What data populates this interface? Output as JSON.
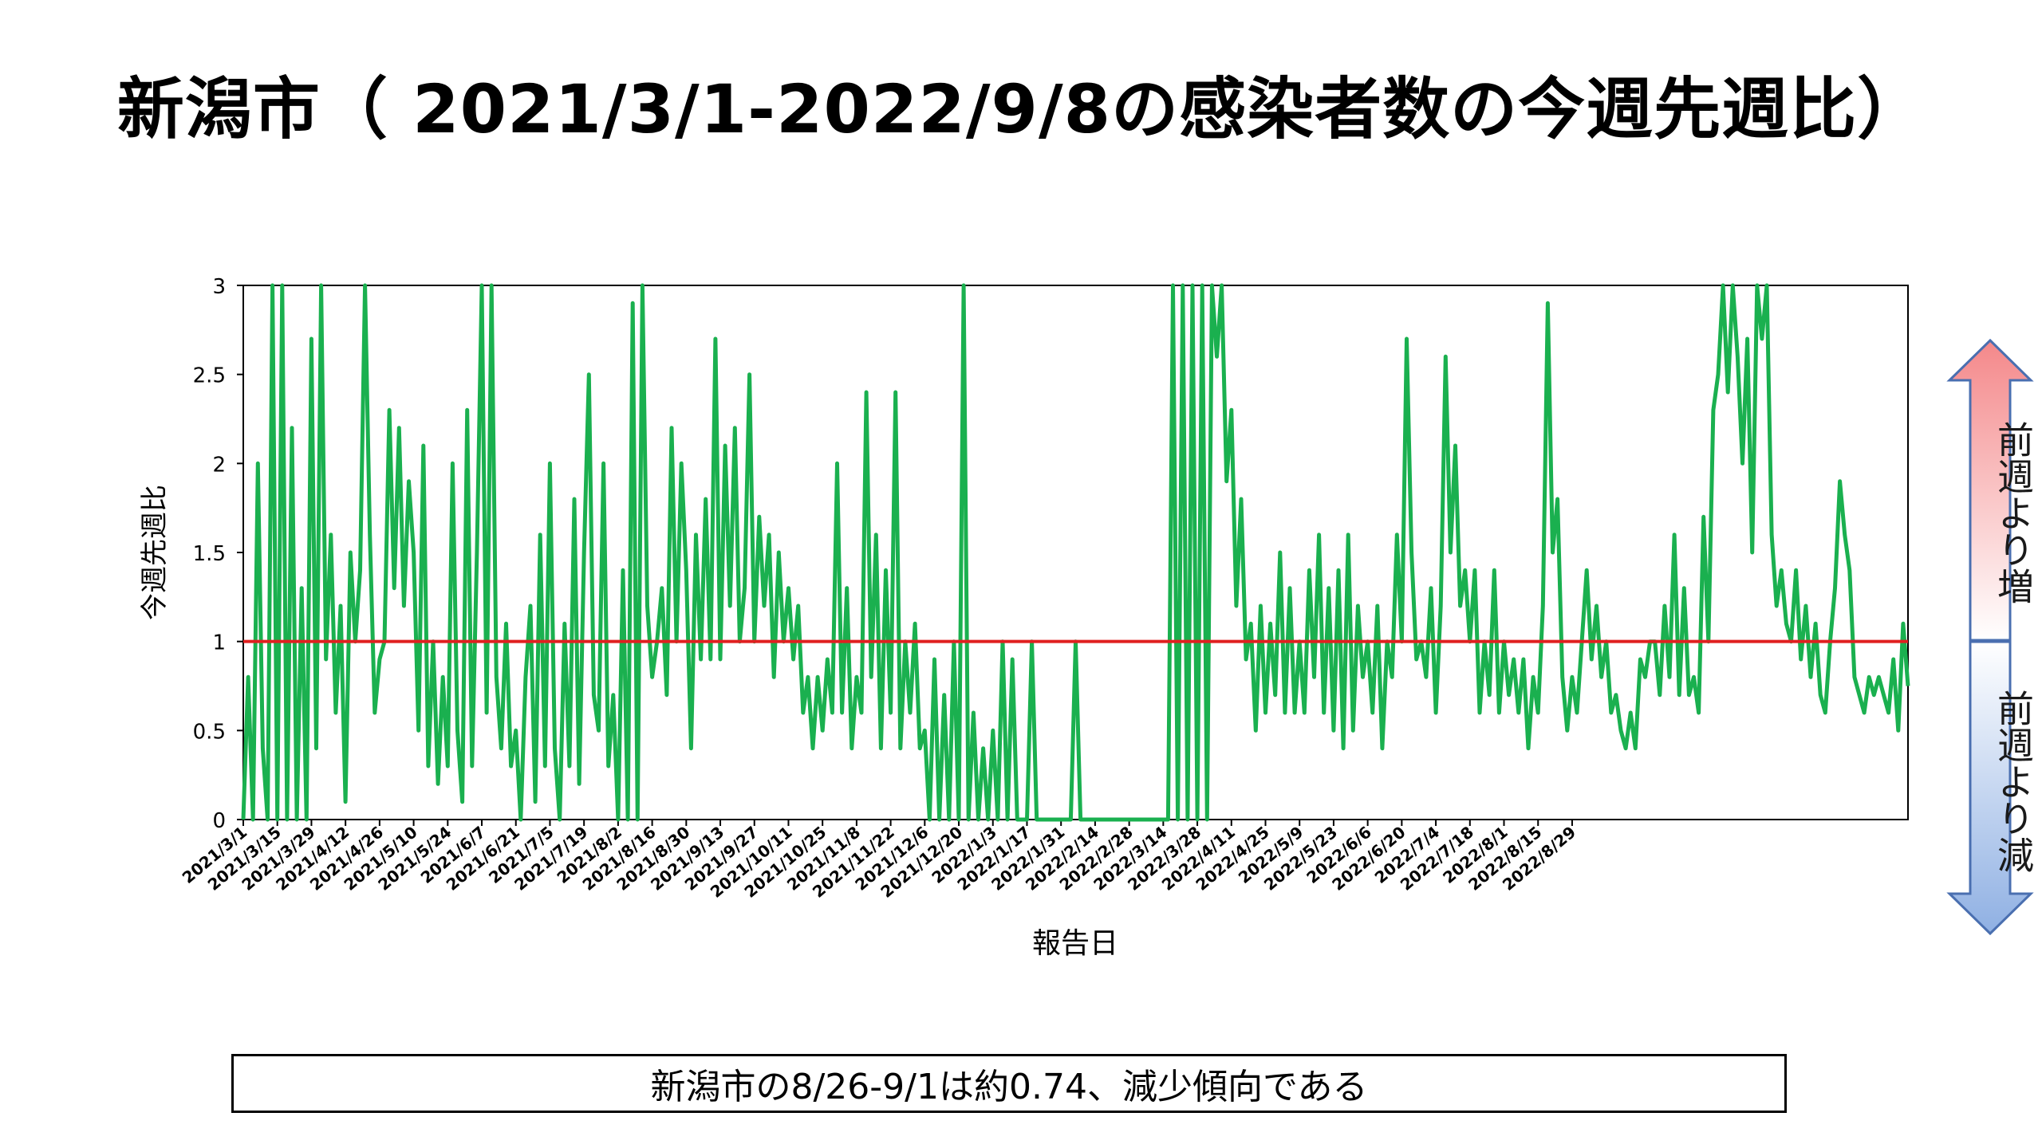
{
  "title": "新潟市（ 2021/3/1-2022/9/8の感染者数の今週先週比）",
  "summary": "新潟市の8/26-9/1は約0.74、減少傾向である",
  "indicator": {
    "up_label": "前週より増",
    "down_label": "前週より減",
    "up_color": "#f4888a",
    "down_color": "#8fb0e3"
  },
  "chart_data": {
    "type": "line",
    "title": "",
    "xlabel": "報告日",
    "ylabel": "今週先週比",
    "ylim": [
      0,
      3
    ],
    "yticks": [
      "0",
      "0.5",
      "1",
      "1.5",
      "2",
      "2.5",
      "3"
    ],
    "xticks": [
      "2021/3/1",
      "2021/3/15",
      "2021/3/29",
      "2021/4/12",
      "2021/4/26",
      "2021/5/10",
      "2021/5/24",
      "2021/6/7",
      "2021/6/21",
      "2021/7/5",
      "2021/7/19",
      "2021/8/2",
      "2021/8/16",
      "2021/8/30",
      "2021/9/13",
      "2021/9/27",
      "2021/10/11",
      "2021/10/25",
      "2021/11/8",
      "2021/11/22",
      "2021/12/6",
      "2021/12/20",
      "2022/1/3",
      "2022/1/17",
      "2022/1/31",
      "2022/2/14",
      "2022/2/28",
      "2022/3/14",
      "2022/3/28",
      "2022/4/11",
      "2022/4/25",
      "2022/5/9",
      "2022/5/23",
      "2022/6/6",
      "2022/6/20",
      "2022/7/4",
      "2022/7/18",
      "2022/8/1",
      "2022/8/15",
      "2022/8/29"
    ],
    "reference_line": {
      "y": 1,
      "color": "#e02020"
    },
    "series": [
      {
        "color": "#1ab04f",
        "points": [
          [
            0,
            0
          ],
          [
            2,
            0.8
          ],
          [
            4,
            0
          ],
          [
            6,
            2
          ],
          [
            8,
            0.4
          ],
          [
            10,
            0
          ],
          [
            12,
            3
          ],
          [
            14,
            0
          ],
          [
            16,
            3
          ],
          [
            18,
            0
          ],
          [
            20,
            2.2
          ],
          [
            22,
            0
          ],
          [
            24,
            1.3
          ],
          [
            26,
            0
          ],
          [
            28,
            2.7
          ],
          [
            30,
            0.4
          ],
          [
            32,
            3
          ],
          [
            34,
            0.9
          ],
          [
            36,
            1.6
          ],
          [
            38,
            0.6
          ],
          [
            40,
            1.2
          ],
          [
            42,
            0.1
          ],
          [
            44,
            1.5
          ],
          [
            46,
            1.0
          ],
          [
            48,
            1.4
          ],
          [
            50,
            3
          ],
          [
            52,
            1.6
          ],
          [
            54,
            0.6
          ],
          [
            56,
            0.9
          ],
          [
            58,
            1.0
          ],
          [
            60,
            2.3
          ],
          [
            62,
            1.3
          ],
          [
            64,
            2.2
          ],
          [
            66,
            1.2
          ],
          [
            68,
            1.9
          ],
          [
            70,
            1.5
          ],
          [
            72,
            0.5
          ],
          [
            74,
            2.1
          ],
          [
            76,
            0.3
          ],
          [
            78,
            1.0
          ],
          [
            80,
            0.2
          ],
          [
            82,
            0.8
          ],
          [
            84,
            0.3
          ],
          [
            86,
            2.0
          ],
          [
            88,
            0.5
          ],
          [
            90,
            0.1
          ],
          [
            92,
            2.3
          ],
          [
            94,
            0.3
          ],
          [
            96,
            1.5
          ],
          [
            98,
            3
          ],
          [
            100,
            0.6
          ],
          [
            102,
            3
          ],
          [
            104,
            0.8
          ],
          [
            106,
            0.4
          ],
          [
            108,
            1.1
          ],
          [
            110,
            0.3
          ],
          [
            112,
            0.5
          ],
          [
            114,
            0
          ],
          [
            116,
            0.8
          ],
          [
            118,
            1.2
          ],
          [
            120,
            0.1
          ],
          [
            122,
            1.6
          ],
          [
            124,
            0.3
          ],
          [
            126,
            2.0
          ],
          [
            128,
            0.4
          ],
          [
            130,
            0
          ],
          [
            132,
            1.1
          ],
          [
            134,
            0.3
          ],
          [
            136,
            1.8
          ],
          [
            138,
            0.2
          ],
          [
            140,
            1.5
          ],
          [
            142,
            2.5
          ],
          [
            144,
            0.7
          ],
          [
            146,
            0.5
          ],
          [
            148,
            2.0
          ],
          [
            150,
            0.3
          ],
          [
            152,
            0.7
          ],
          [
            154,
            0
          ],
          [
            156,
            1.4
          ],
          [
            158,
            0
          ],
          [
            160,
            2.9
          ],
          [
            162,
            0
          ],
          [
            164,
            3
          ],
          [
            166,
            1.2
          ],
          [
            168,
            0.8
          ],
          [
            170,
            1.0
          ],
          [
            172,
            1.3
          ],
          [
            174,
            0.7
          ],
          [
            176,
            2.2
          ],
          [
            178,
            1.0
          ],
          [
            180,
            2.0
          ],
          [
            182,
            1.4
          ],
          [
            184,
            0.4
          ],
          [
            186,
            1.6
          ],
          [
            188,
            0.9
          ],
          [
            190,
            1.8
          ],
          [
            192,
            0.9
          ],
          [
            194,
            2.7
          ],
          [
            196,
            0.9
          ],
          [
            198,
            2.1
          ],
          [
            200,
            1.2
          ],
          [
            202,
            2.2
          ],
          [
            204,
            1.0
          ],
          [
            206,
            1.3
          ],
          [
            208,
            2.5
          ],
          [
            210,
            1.0
          ],
          [
            212,
            1.7
          ],
          [
            214,
            1.2
          ],
          [
            216,
            1.6
          ],
          [
            218,
            0.8
          ],
          [
            220,
            1.5
          ],
          [
            222,
            1.0
          ],
          [
            224,
            1.3
          ],
          [
            226,
            0.9
          ],
          [
            228,
            1.2
          ],
          [
            230,
            0.6
          ],
          [
            232,
            0.8
          ],
          [
            234,
            0.4
          ],
          [
            236,
            0.8
          ],
          [
            238,
            0.5
          ],
          [
            240,
            0.9
          ],
          [
            242,
            0.6
          ],
          [
            244,
            2.0
          ],
          [
            246,
            0.6
          ],
          [
            248,
            1.3
          ],
          [
            250,
            0.4
          ],
          [
            252,
            0.8
          ],
          [
            254,
            0.6
          ],
          [
            256,
            2.4
          ],
          [
            258,
            0.8
          ],
          [
            260,
            1.6
          ],
          [
            262,
            0.4
          ],
          [
            264,
            1.4
          ],
          [
            266,
            0.6
          ],
          [
            268,
            2.4
          ],
          [
            270,
            0.4
          ],
          [
            272,
            1.0
          ],
          [
            274,
            0.6
          ],
          [
            276,
            1.1
          ],
          [
            278,
            0.4
          ],
          [
            280,
            0.5
          ],
          [
            282,
            0
          ],
          [
            284,
            0.9
          ],
          [
            286,
            0
          ],
          [
            288,
            0.7
          ],
          [
            290,
            0
          ],
          [
            292,
            1.0
          ],
          [
            294,
            0
          ],
          [
            296,
            3
          ],
          [
            298,
            0
          ],
          [
            300,
            0.6
          ],
          [
            302,
            0
          ],
          [
            304,
            0.4
          ],
          [
            306,
            0
          ],
          [
            308,
            0.5
          ],
          [
            310,
            0
          ],
          [
            312,
            1.0
          ],
          [
            314,
            0
          ],
          [
            316,
            0.9
          ],
          [
            318,
            0
          ],
          [
            322,
            0
          ],
          [
            324,
            1.0
          ],
          [
            326,
            0
          ],
          [
            340,
            0
          ],
          [
            342,
            1.0
          ],
          [
            344,
            0
          ],
          [
            380,
            0
          ],
          [
            382,
            3
          ],
          [
            384,
            0
          ],
          [
            386,
            3
          ],
          [
            388,
            0
          ],
          [
            390,
            3
          ],
          [
            392,
            0
          ],
          [
            394,
            3
          ],
          [
            396,
            0
          ],
          [
            398,
            3
          ],
          [
            400,
            2.6
          ],
          [
            402,
            3
          ],
          [
            404,
            1.9
          ],
          [
            406,
            2.3
          ],
          [
            408,
            1.2
          ],
          [
            410,
            1.8
          ],
          [
            412,
            0.9
          ],
          [
            414,
            1.1
          ],
          [
            416,
            0.5
          ],
          [
            418,
            1.2
          ],
          [
            420,
            0.6
          ],
          [
            422,
            1.1
          ],
          [
            424,
            0.7
          ],
          [
            426,
            1.5
          ],
          [
            428,
            0.6
          ],
          [
            430,
            1.3
          ],
          [
            432,
            0.6
          ],
          [
            434,
            1.0
          ],
          [
            436,
            0.6
          ],
          [
            438,
            1.4
          ],
          [
            440,
            0.8
          ],
          [
            442,
            1.6
          ],
          [
            444,
            0.6
          ],
          [
            446,
            1.3
          ],
          [
            448,
            0.5
          ],
          [
            450,
            1.4
          ],
          [
            452,
            0.4
          ],
          [
            454,
            1.6
          ],
          [
            456,
            0.5
          ],
          [
            458,
            1.2
          ],
          [
            460,
            0.8
          ],
          [
            462,
            1.0
          ],
          [
            464,
            0.6
          ],
          [
            466,
            1.2
          ],
          [
            468,
            0.4
          ],
          [
            470,
            1.0
          ],
          [
            472,
            0.8
          ],
          [
            474,
            1.6
          ],
          [
            476,
            1.0
          ],
          [
            478,
            2.7
          ],
          [
            480,
            1.5
          ],
          [
            482,
            0.9
          ],
          [
            484,
            1.0
          ],
          [
            486,
            0.8
          ],
          [
            488,
            1.3
          ],
          [
            490,
            0.6
          ],
          [
            492,
            1.2
          ],
          [
            494,
            2.6
          ],
          [
            496,
            1.5
          ],
          [
            498,
            2.1
          ],
          [
            500,
            1.2
          ],
          [
            502,
            1.4
          ],
          [
            504,
            1.0
          ],
          [
            506,
            1.4
          ],
          [
            508,
            0.6
          ],
          [
            510,
            1.0
          ],
          [
            512,
            0.7
          ],
          [
            514,
            1.4
          ],
          [
            516,
            0.6
          ],
          [
            518,
            1.0
          ],
          [
            520,
            0.7
          ],
          [
            522,
            0.9
          ],
          [
            524,
            0.6
          ],
          [
            526,
            0.9
          ],
          [
            528,
            0.4
          ],
          [
            530,
            0.8
          ],
          [
            532,
            0.6
          ],
          [
            534,
            1.2
          ],
          [
            536,
            2.9
          ],
          [
            538,
            1.5
          ],
          [
            540,
            1.8
          ],
          [
            542,
            0.8
          ],
          [
            544,
            0.5
          ],
          [
            546,
            0.8
          ],
          [
            548,
            0.6
          ],
          [
            550,
            1.0
          ],
          [
            552,
            1.4
          ],
          [
            554,
            0.9
          ],
          [
            556,
            1.2
          ],
          [
            558,
            0.8
          ],
          [
            560,
            1.0
          ],
          [
            562,
            0.6
          ],
          [
            564,
            0.7
          ],
          [
            566,
            0.5
          ],
          [
            568,
            0.4
          ],
          [
            570,
            0.6
          ],
          [
            572,
            0.4
          ],
          [
            574,
            0.9
          ],
          [
            576,
            0.8
          ],
          [
            578,
            1.0
          ],
          [
            580,
            1.0
          ],
          [
            582,
            0.7
          ],
          [
            584,
            1.2
          ],
          [
            586,
            0.8
          ],
          [
            588,
            1.6
          ],
          [
            590,
            0.7
          ],
          [
            592,
            1.3
          ],
          [
            594,
            0.7
          ],
          [
            596,
            0.8
          ],
          [
            598,
            0.6
          ],
          [
            600,
            1.7
          ],
          [
            602,
            1.0
          ],
          [
            604,
            2.3
          ],
          [
            606,
            2.5
          ],
          [
            608,
            3
          ],
          [
            610,
            2.4
          ],
          [
            612,
            3
          ],
          [
            614,
            2.6
          ],
          [
            616,
            2.0
          ],
          [
            618,
            2.7
          ],
          [
            620,
            1.5
          ],
          [
            622,
            3
          ],
          [
            624,
            2.7
          ],
          [
            626,
            3
          ],
          [
            628,
            1.6
          ],
          [
            630,
            1.2
          ],
          [
            632,
            1.4
          ],
          [
            634,
            1.1
          ],
          [
            636,
            1.0
          ],
          [
            638,
            1.4
          ],
          [
            640,
            0.9
          ],
          [
            642,
            1.2
          ],
          [
            644,
            0.8
          ],
          [
            646,
            1.1
          ],
          [
            648,
            0.7
          ],
          [
            650,
            0.6
          ],
          [
            652,
            1.0
          ],
          [
            654,
            1.3
          ],
          [
            656,
            1.9
          ],
          [
            658,
            1.6
          ],
          [
            660,
            1.4
          ],
          [
            662,
            0.8
          ],
          [
            664,
            0.7
          ],
          [
            666,
            0.6
          ],
          [
            668,
            0.8
          ],
          [
            670,
            0.7
          ],
          [
            672,
            0.8
          ],
          [
            674,
            0.7
          ],
          [
            676,
            0.6
          ],
          [
            678,
            0.9
          ],
          [
            680,
            0.5
          ],
          [
            682,
            1.1
          ],
          [
            684,
            0.75
          ]
        ]
      }
    ],
    "x_max": 684
  }
}
